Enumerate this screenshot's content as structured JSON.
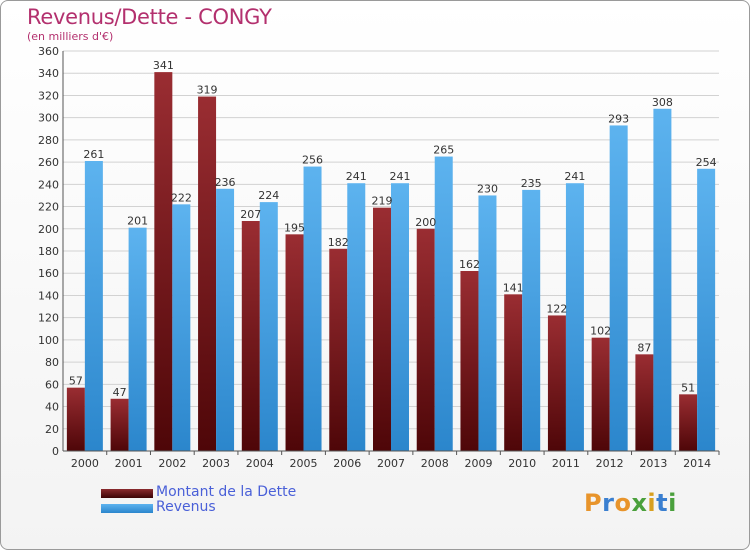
{
  "chart_data": {
    "type": "bar",
    "title": "Revenus/Dette - CONGY",
    "subtitle": "(en milliers d'€)",
    "categories": [
      "2000",
      "2001",
      "2002",
      "2003",
      "2004",
      "2005",
      "2006",
      "2007",
      "2008",
      "2009",
      "2010",
      "2011",
      "2012",
      "2013",
      "2014"
    ],
    "series": [
      {
        "name": "Montant de la Dette",
        "color": "#7a1d22",
        "values": [
          57,
          47,
          341,
          319,
          207,
          195,
          182,
          219,
          200,
          162,
          141,
          122,
          102,
          87,
          51
        ]
      },
      {
        "name": "Revenus",
        "color": "#3f9fe3",
        "values": [
          261,
          201,
          222,
          236,
          224,
          256,
          241,
          241,
          265,
          230,
          235,
          241,
          293,
          308,
          254
        ]
      }
    ],
    "ylim": [
      0,
      360
    ],
    "yticks": [
      0,
      20,
      40,
      60,
      80,
      100,
      120,
      140,
      160,
      180,
      200,
      220,
      240,
      260,
      280,
      300,
      320,
      340,
      360
    ],
    "grid": true,
    "legend_position": "bottom-left"
  },
  "logo": {
    "text": "Proxiti"
  }
}
